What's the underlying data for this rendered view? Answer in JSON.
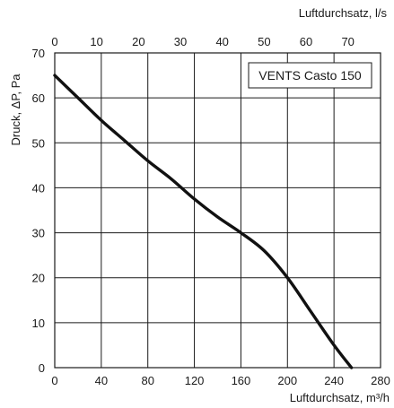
{
  "chart_data": {
    "type": "line",
    "title": "",
    "legend": {
      "text": "VENTS Casto 150",
      "placement": "top-right"
    },
    "xlabel_bottom": "Luftdurchsatz, m³/h",
    "xlabel_top": "Luftdurchsatz, l/s",
    "ylabel": "Druck, ΔP, Pa",
    "xlim": [
      0,
      280
    ],
    "ylim": [
      0,
      70
    ],
    "top_axis_lim": [
      0,
      77.78
    ],
    "x_ticks_bottom": [
      "0",
      "40",
      "80",
      "120",
      "160",
      "200",
      "240",
      "280"
    ],
    "x_ticks_top": [
      "0",
      "10",
      "20",
      "30",
      "40",
      "50",
      "60",
      "70"
    ],
    "y_ticks": [
      "0",
      "10",
      "20",
      "30",
      "40",
      "50",
      "60",
      "70"
    ],
    "grid": true,
    "series": [
      {
        "color": "#111111",
        "points": [
          {
            "x": 0,
            "y": 65
          },
          {
            "x": 20,
            "y": 60
          },
          {
            "x": 40,
            "y": 55
          },
          {
            "x": 60,
            "y": 50.5
          },
          {
            "x": 80,
            "y": 46
          },
          {
            "x": 100,
            "y": 42
          },
          {
            "x": 120,
            "y": 37.5
          },
          {
            "x": 140,
            "y": 33.5
          },
          {
            "x": 160,
            "y": 30
          },
          {
            "x": 180,
            "y": 26
          },
          {
            "x": 200,
            "y": 20
          },
          {
            "x": 220,
            "y": 12.5
          },
          {
            "x": 240,
            "y": 5
          },
          {
            "x": 255,
            "y": 0
          }
        ]
      }
    ]
  }
}
